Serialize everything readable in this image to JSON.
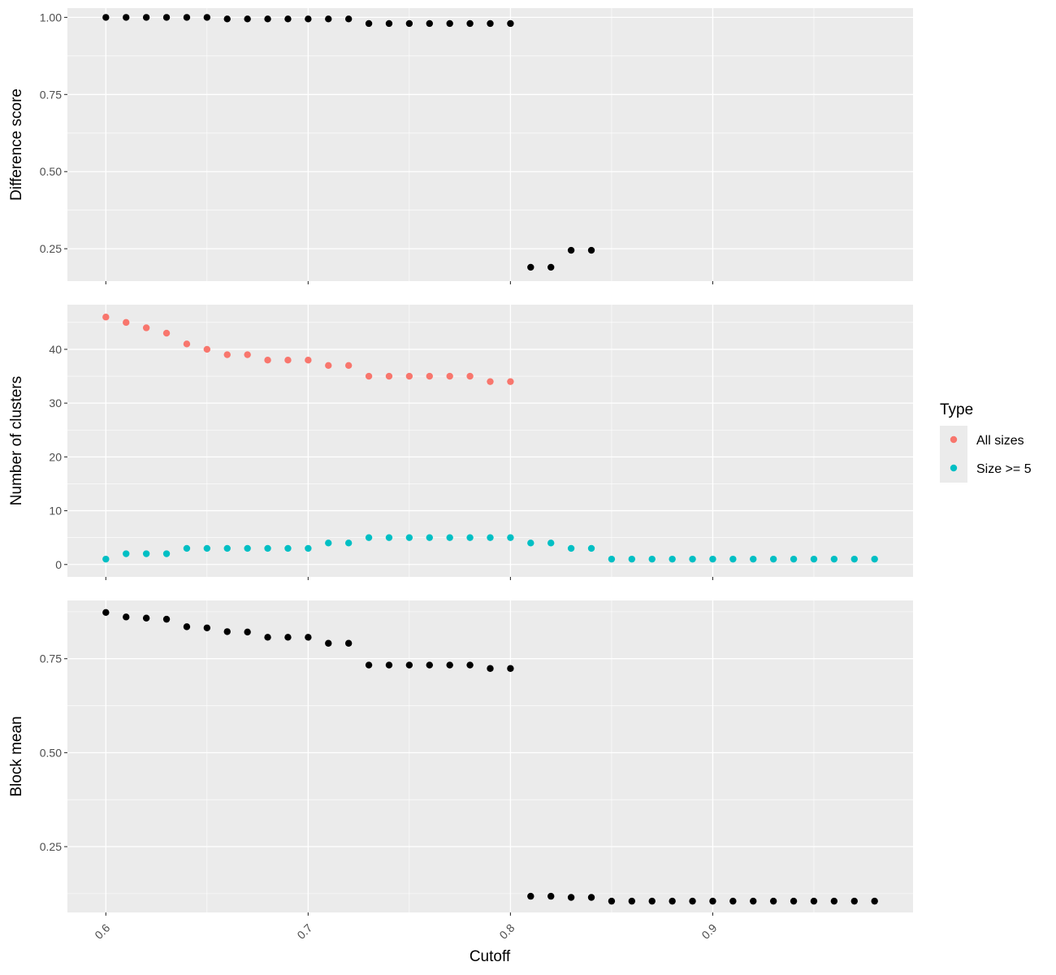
{
  "chart_data": {
    "type": "scatter",
    "xlabel": "Cutoff",
    "x_ticks": [
      0.6,
      0.7,
      0.8,
      0.9
    ],
    "x_tick_labels": [
      "0.6",
      "0.7",
      "0.8",
      "0.9"
    ],
    "xlim": [
      0.581,
      0.999
    ],
    "grid": true,
    "legend": {
      "title": "Type",
      "position": "right",
      "entries": [
        {
          "name": "All sizes",
          "color": "#F8766D"
        },
        {
          "name": "Size >= 5",
          "color": "#00BFC4"
        }
      ]
    },
    "panels": [
      {
        "ylabel": "Difference score",
        "ylim": [
          0.145,
          1.03
        ],
        "y_ticks": [
          0.25,
          0.5,
          0.75,
          1.0
        ],
        "y_tick_labels": [
          "0.25",
          "0.50",
          "0.75",
          "1.00"
        ],
        "series": [
          {
            "color": "#000000",
            "x": [
              0.6,
              0.61,
              0.62,
              0.63,
              0.64,
              0.65,
              0.66,
              0.67,
              0.68,
              0.69,
              0.7,
              0.71,
              0.72,
              0.73,
              0.74,
              0.75,
              0.76,
              0.77,
              0.78,
              0.79,
              0.8,
              0.81,
              0.82,
              0.83,
              0.84
            ],
            "y": [
              1.0,
              1.0,
              1.0,
              1.0,
              1.0,
              1.0,
              0.995,
              0.995,
              0.995,
              0.995,
              0.995,
              0.995,
              0.995,
              0.98,
              0.98,
              0.98,
              0.98,
              0.98,
              0.98,
              0.98,
              0.98,
              0.19,
              0.19,
              0.245,
              0.245
            ]
          }
        ]
      },
      {
        "ylabel": "Number of clusters",
        "ylim": [
          -2.3,
          48.3
        ],
        "y_ticks": [
          0,
          10,
          20,
          30,
          40
        ],
        "y_tick_labels": [
          "0",
          "10",
          "20",
          "30",
          "40"
        ],
        "series": [
          {
            "name": "All sizes",
            "color": "#F8766D",
            "x": [
              0.6,
              0.61,
              0.62,
              0.63,
              0.64,
              0.65,
              0.66,
              0.67,
              0.68,
              0.69,
              0.7,
              0.71,
              0.72,
              0.73,
              0.74,
              0.75,
              0.76,
              0.77,
              0.78,
              0.79,
              0.8
            ],
            "y": [
              46,
              45,
              44,
              43,
              41,
              40,
              39,
              39,
              38,
              38,
              38,
              37,
              37,
              35,
              35,
              35,
              35,
              35,
              35,
              34,
              34
            ]
          },
          {
            "name": "Size >= 5",
            "color": "#00BFC4",
            "x": [
              0.6,
              0.61,
              0.62,
              0.63,
              0.64,
              0.65,
              0.66,
              0.67,
              0.68,
              0.69,
              0.7,
              0.71,
              0.72,
              0.73,
              0.74,
              0.75,
              0.76,
              0.77,
              0.78,
              0.79,
              0.8,
              0.81,
              0.82,
              0.83,
              0.84,
              0.85,
              0.86,
              0.87,
              0.88,
              0.89,
              0.9,
              0.91,
              0.92,
              0.93,
              0.94,
              0.95,
              0.96,
              0.97,
              0.98
            ],
            "y": [
              1,
              2,
              2,
              2,
              3,
              3,
              3,
              3,
              3,
              3,
              3,
              4,
              4,
              5,
              5,
              5,
              5,
              5,
              5,
              5,
              5,
              4,
              4,
              3,
              3,
              1,
              1,
              1,
              1,
              1,
              1,
              1,
              1,
              1,
              1,
              1,
              1,
              1,
              1
            ]
          }
        ]
      },
      {
        "ylabel": "Block mean",
        "ylim": [
          0.075,
          0.905
        ],
        "y_ticks": [
          0.25,
          0.5,
          0.75
        ],
        "y_tick_labels": [
          "0.25",
          "0.50",
          "0.75"
        ],
        "series": [
          {
            "color": "#000000",
            "x": [
              0.6,
              0.61,
              0.62,
              0.63,
              0.64,
              0.65,
              0.66,
              0.67,
              0.68,
              0.69,
              0.7,
              0.71,
              0.72,
              0.73,
              0.74,
              0.75,
              0.76,
              0.77,
              0.78,
              0.79,
              0.8,
              0.81,
              0.82,
              0.83,
              0.84,
              0.85,
              0.86,
              0.87,
              0.88,
              0.89,
              0.9,
              0.91,
              0.92,
              0.93,
              0.94,
              0.95,
              0.96,
              0.97,
              0.98
            ],
            "y": [
              0.873,
              0.861,
              0.858,
              0.855,
              0.835,
              0.832,
              0.822,
              0.821,
              0.807,
              0.807,
              0.807,
              0.791,
              0.791,
              0.733,
              0.733,
              0.733,
              0.733,
              0.733,
              0.733,
              0.724,
              0.724,
              0.118,
              0.118,
              0.115,
              0.115,
              0.105,
              0.105,
              0.105,
              0.105,
              0.105,
              0.105,
              0.105,
              0.105,
              0.105,
              0.105,
              0.105,
              0.105,
              0.105,
              0.105
            ]
          }
        ]
      }
    ]
  }
}
